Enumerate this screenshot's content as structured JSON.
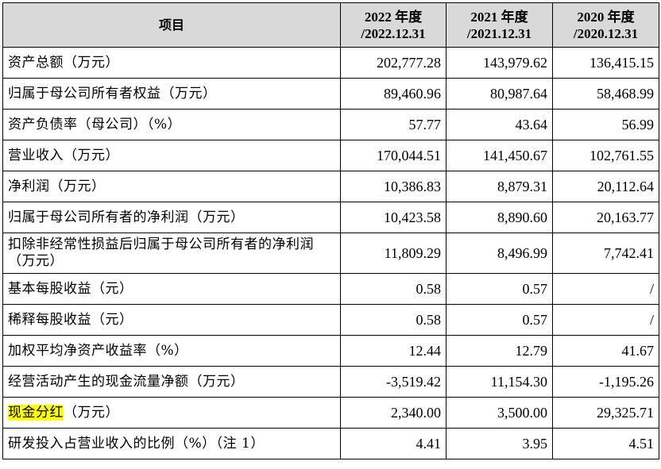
{
  "header": {
    "item": "项目",
    "columns": [
      {
        "year": "2022 年度",
        "date": "/2022.12.31"
      },
      {
        "year": "2021 年度",
        "date": "/2021.12.31"
      },
      {
        "year": "2020 年度",
        "date": "/2020.12.31"
      }
    ]
  },
  "rows": [
    {
      "label": "资产总额（万元）",
      "values": [
        "202,777.28",
        "143,979.62",
        "136,415.15"
      ]
    },
    {
      "label": "归属于母公司所有者权益（万元）",
      "values": [
        "89,460.96",
        "80,987.64",
        "58,468.99"
      ]
    },
    {
      "label": "资产负债率（母公司）（%）",
      "values": [
        "57.77",
        "43.64",
        "56.99"
      ]
    },
    {
      "label": "营业收入（万元）",
      "values": [
        "170,044.51",
        "141,450.67",
        "102,761.55"
      ]
    },
    {
      "label": "净利润（万元）",
      "values": [
        "10,386.83",
        "8,879.31",
        "20,112.64"
      ]
    },
    {
      "label": "归属于母公司所有者的净利润（万元）",
      "values": [
        "10,423.58",
        "8,890.60",
        "20,163.77"
      ]
    },
    {
      "label": "扣除非经常性损益后归属于母公司所有者的净利润（万元）",
      "values": [
        "11,809.29",
        "8,496.99",
        "7,742.41"
      ]
    },
    {
      "label": "基本每股收益（元）",
      "values": [
        "0.58",
        "0.57",
        "/"
      ]
    },
    {
      "label": "稀释每股收益（元）",
      "values": [
        "0.58",
        "0.57",
        "/"
      ]
    },
    {
      "label": "加权平均净资产收益率（%）",
      "values": [
        "12.44",
        "12.79",
        "41.67"
      ]
    },
    {
      "label": "经营活动产生的现金流量净额（万元）",
      "values": [
        "-3,519.42",
        "11,154.30",
        "-1,195.26"
      ]
    },
    {
      "label_highlight": "现金分红",
      "label_rest": "（万元）",
      "values": [
        "2,340.00",
        "3,500.00",
        "29,325.71"
      ]
    },
    {
      "label": "研发投入占营业收入的比例（%）（注 1）",
      "values": [
        "4.41",
        "3.95",
        "4.51"
      ]
    }
  ],
  "colors": {
    "header_bg": "#d9d9d9",
    "highlight": "#ffff00",
    "border": "#000000"
  }
}
